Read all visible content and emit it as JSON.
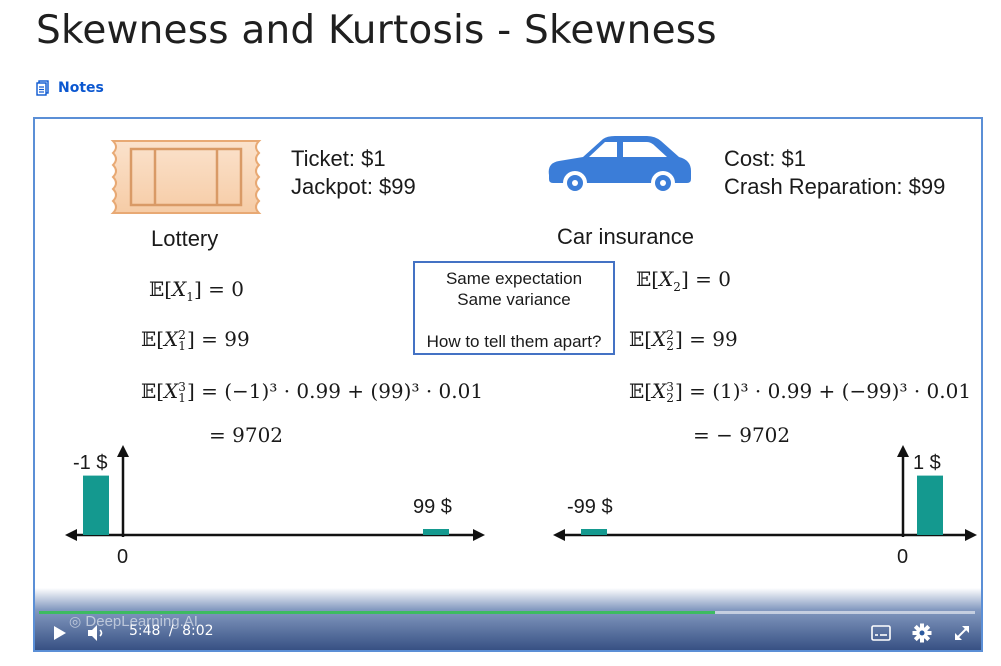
{
  "page": {
    "title": "Skewness and Kurtosis - Skewness",
    "notes_label": "Notes"
  },
  "slide": {
    "lottery": {
      "ticket": "Ticket: $1",
      "jackpot": "Jackpot: $99",
      "label": "Lottery",
      "e1": "= 0",
      "e2": "= 99",
      "e3": "= (−1)³ · 0.99 + (99)³ · 0.01",
      "e3_result": "= 9702"
    },
    "car": {
      "cost": "Cost: $1",
      "crash": "Crash Reparation: $99",
      "label": "Car insurance",
      "e1": "= 0",
      "e2": "= 99",
      "e3": "= (1)³ · 0.99 + (−99)³ · 0.01",
      "e3_result": "= − 9702"
    },
    "callout": {
      "line1": "Same expectation",
      "line2": "Same variance",
      "line3": "How to tell them apart?"
    }
  },
  "chart_data": [
    {
      "type": "bar",
      "name_context": "Lottery distribution",
      "categories": [
        "-1 $",
        "99 $"
      ],
      "x": [
        -1,
        99
      ],
      "values": [
        0.99,
        0.01
      ],
      "zero_label": "0"
    },
    {
      "type": "bar",
      "name_context": "Car insurance distribution",
      "categories": [
        "-99 $",
        "1 $"
      ],
      "x": [
        -99,
        1
      ],
      "values": [
        0.01,
        0.99
      ],
      "zero_label": "0"
    }
  ],
  "player": {
    "current_time": "5:48",
    "separator": "/",
    "duration": "8:02",
    "progress": 0.722,
    "watermark": "DeepLearning.AI",
    "colors": {
      "progress": "#3dbb61",
      "bar": "#14998f"
    },
    "icons": [
      "play-icon",
      "volume-icon",
      "subtitles-icon",
      "settings-icon",
      "fullscreen-icon"
    ]
  }
}
